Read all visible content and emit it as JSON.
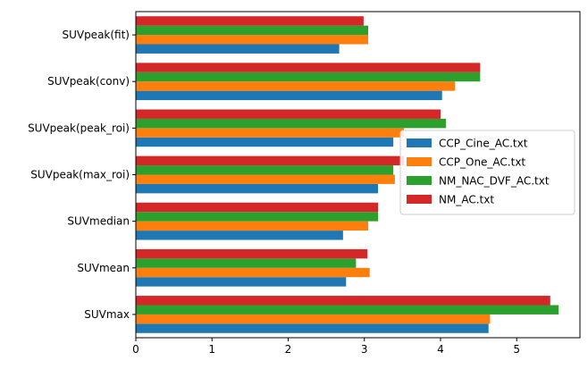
{
  "chart_data": {
    "type": "bar",
    "orientation": "horizontal",
    "categories": [
      "SUVmax",
      "SUVmean",
      "SUVmedian",
      "SUVpeak(max_roi)",
      "SUVpeak(peak_roi)",
      "SUVpeak(conv)",
      "SUVpeak(fit)"
    ],
    "series": [
      {
        "name": "CCP_Cine_AC.txt",
        "color": "#1f77b4",
        "values": [
          4.63,
          2.76,
          2.72,
          3.18,
          3.38,
          4.02,
          2.67
        ]
      },
      {
        "name": "CCP_One_AC.txt",
        "color": "#ff7f0e",
        "values": [
          4.65,
          3.07,
          3.05,
          3.4,
          3.52,
          4.19,
          3.05
        ]
      },
      {
        "name": "NM_NAC_DVF_AC.txt",
        "color": "#2ca02c",
        "values": [
          5.55,
          2.89,
          3.18,
          3.38,
          4.07,
          4.52,
          3.05
        ]
      },
      {
        "name": "NM_AC.txt",
        "color": "#d62728",
        "values": [
          5.44,
          3.04,
          3.18,
          3.52,
          4.0,
          4.52,
          2.99
        ]
      }
    ],
    "xticks": [
      "0",
      "1",
      "2",
      "3",
      "4",
      "5"
    ],
    "xlim": [
      0,
      5.83
    ],
    "title": "",
    "xlabel": "",
    "ylabel": "",
    "grid": false,
    "legend": "center-right"
  }
}
